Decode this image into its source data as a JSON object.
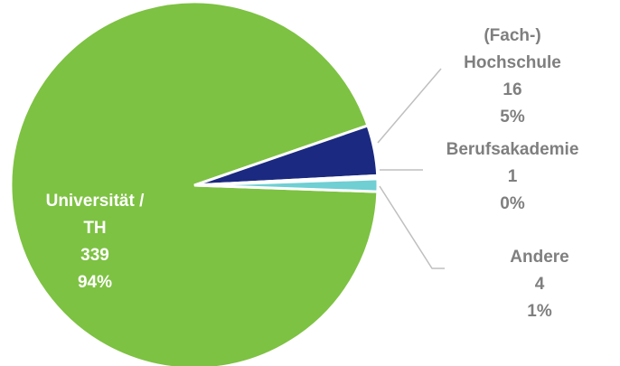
{
  "chart_data": {
    "type": "pie",
    "categories": [
      "Universität / TH",
      "(Fach-) Hochschule",
      "Berufsakademie",
      "Andere"
    ],
    "values": [
      339,
      16,
      1,
      4
    ],
    "percent_labels": [
      "94%",
      "5%",
      "0%",
      "1%"
    ],
    "colors": [
      "#7dc242",
      "#1b2a80",
      "#ffffff",
      "#6fcfd3"
    ]
  }
}
